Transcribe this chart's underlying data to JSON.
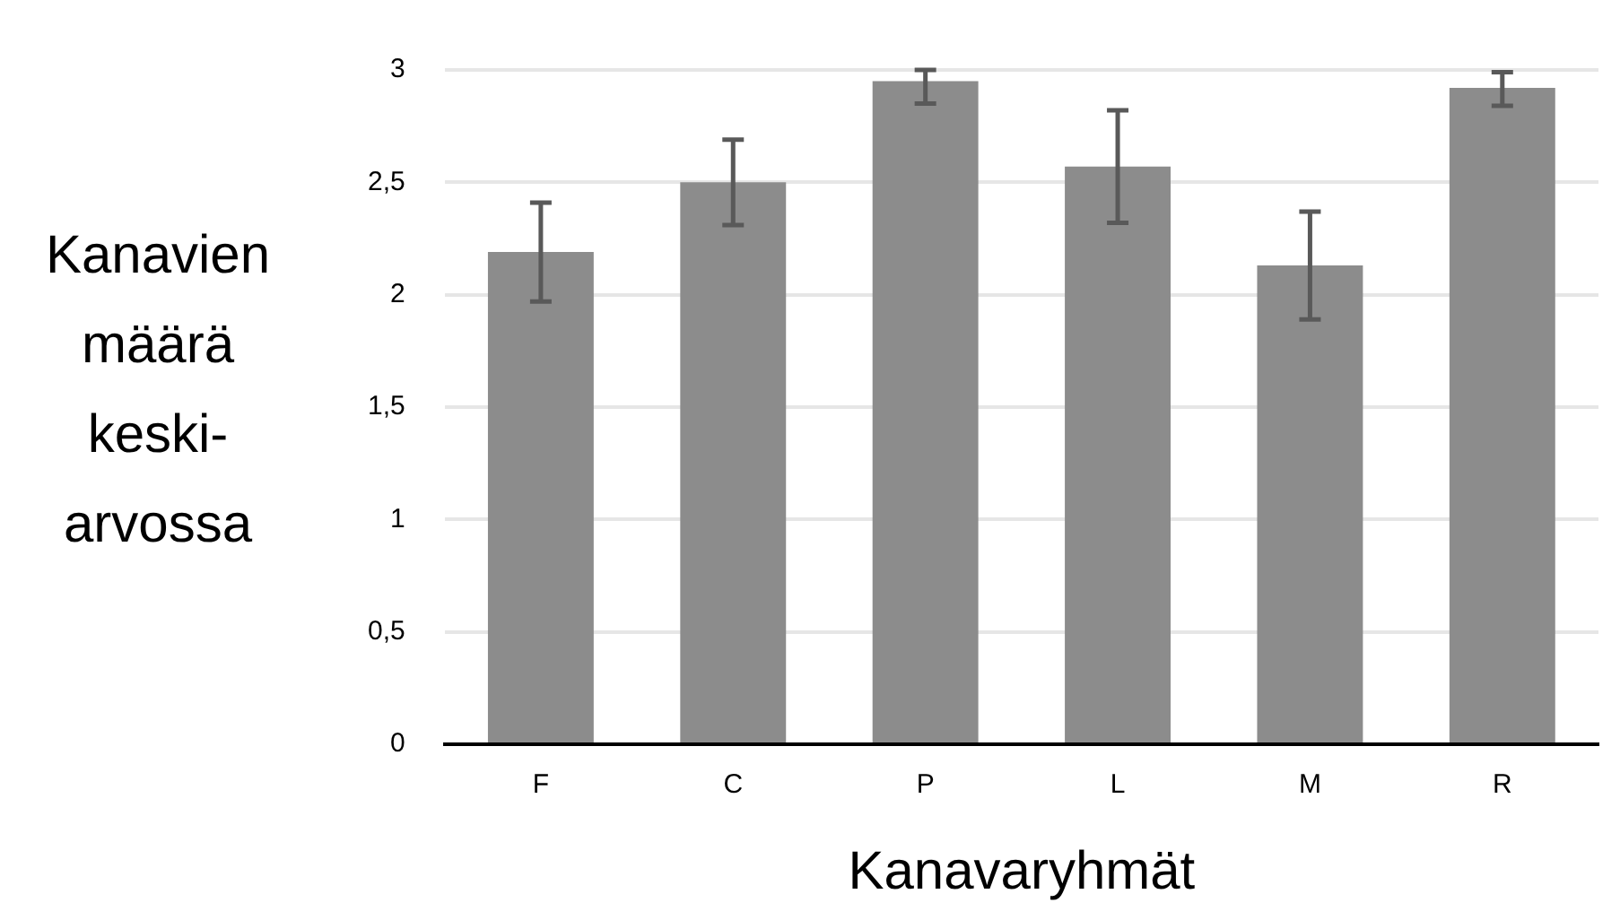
{
  "chart_data": {
    "type": "bar",
    "xlabel": "Kanavaryhmät",
    "ylabel": "Kanavien\nmäärä\nkeski-\narvossa",
    "categories": [
      "F",
      "C",
      "P",
      "L",
      "M",
      "R"
    ],
    "values": [
      2.19,
      2.5,
      2.95,
      2.57,
      2.13,
      2.92
    ],
    "errors": [
      0.22,
      0.19,
      [
        2.85,
        3.0
      ],
      0.25,
      0.24,
      [
        2.84,
        2.99
      ]
    ],
    "color": "#8c8c8c",
    "ylim": [
      0,
      3
    ],
    "yticks": [
      {
        "value": 0,
        "label": "0"
      },
      {
        "value": 0.5,
        "label": "0,5"
      },
      {
        "value": 1,
        "label": "1"
      },
      {
        "value": 1.5,
        "label": "1,5"
      },
      {
        "value": 2,
        "label": "2"
      },
      {
        "value": 2.5,
        "label": "2,5"
      },
      {
        "value": 3,
        "label": "3"
      }
    ],
    "grid": "y",
    "legend": false
  }
}
